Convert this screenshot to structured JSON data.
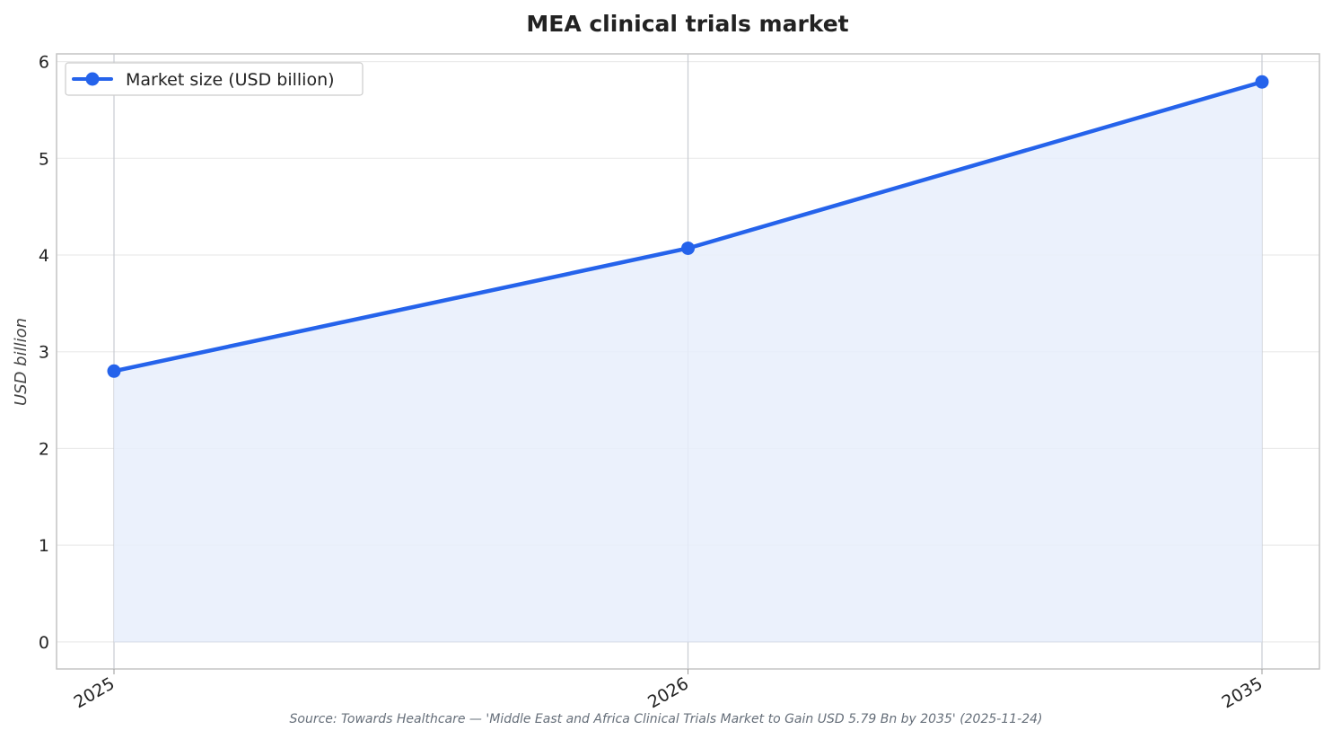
{
  "chart_data": {
    "type": "line",
    "title": "MEA clinical trials market",
    "xlabel": "",
    "ylabel": "USD billion",
    "categories": [
      "2025",
      "2026",
      "2035"
    ],
    "series": [
      {
        "name": "Market size (USD billion)",
        "values": [
          2.8,
          4.07,
          5.79
        ]
      }
    ],
    "ylim": [
      -0.28,
      6.08
    ],
    "yticks": [
      "0",
      "1",
      "2",
      "3",
      "4",
      "5",
      "6"
    ],
    "grid": true,
    "area_fill": true,
    "legend": "top-left",
    "source": "Source: Towards Healthcare — 'Middle East and Africa Clinical Trials Market to Gain USD 5.79 Bn by 2035' (2025-11-24)"
  },
  "colors": {
    "line": "#2563eb",
    "fill": "#e8effc",
    "grid": "#ebebeb",
    "frame": "#c4c4c4"
  }
}
